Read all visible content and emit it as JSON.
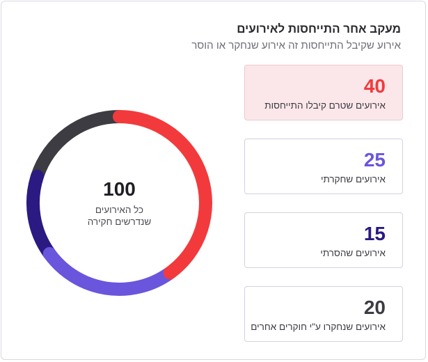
{
  "header": {
    "title": "מעקב אחר התייחסות לאירועים",
    "subtitle": "אירוע שקיבל התייחסות זה אירוע שנחקר או הוסר"
  },
  "stats": [
    {
      "value": "40",
      "label": "אירועים שטרם קיבלו התייחסות",
      "color": "#f23a3c"
    },
    {
      "value": "25",
      "label": "אירועים שחקרתי",
      "color": "#6a55dd"
    },
    {
      "value": "15",
      "label": "אירועים שהסרתי",
      "color": "#2a1a82"
    },
    {
      "value": "20",
      "label": "אירועים שנחקרו ע\"י חוקרים אחרים",
      "color": "#3c3c42"
    }
  ],
  "donut": {
    "total": "100",
    "caption_line1": "כל האירועים",
    "caption_line2": "שנדרשים חקירה"
  },
  "chart_data": {
    "type": "pie",
    "variant": "donut",
    "categories": [
      "אירועים שטרם קיבלו התייחסות",
      "אירועים שחקרתי",
      "אירועים שהסרתי",
      "אירועים שנחקרו ע\"י חוקרים אחרים"
    ],
    "values": [
      40,
      25,
      15,
      20
    ],
    "colors": [
      "#f23a3c",
      "#6a55dd",
      "#2a1a82",
      "#3c3c42"
    ],
    "direction": "clockwise-from-top",
    "total": 100
  }
}
